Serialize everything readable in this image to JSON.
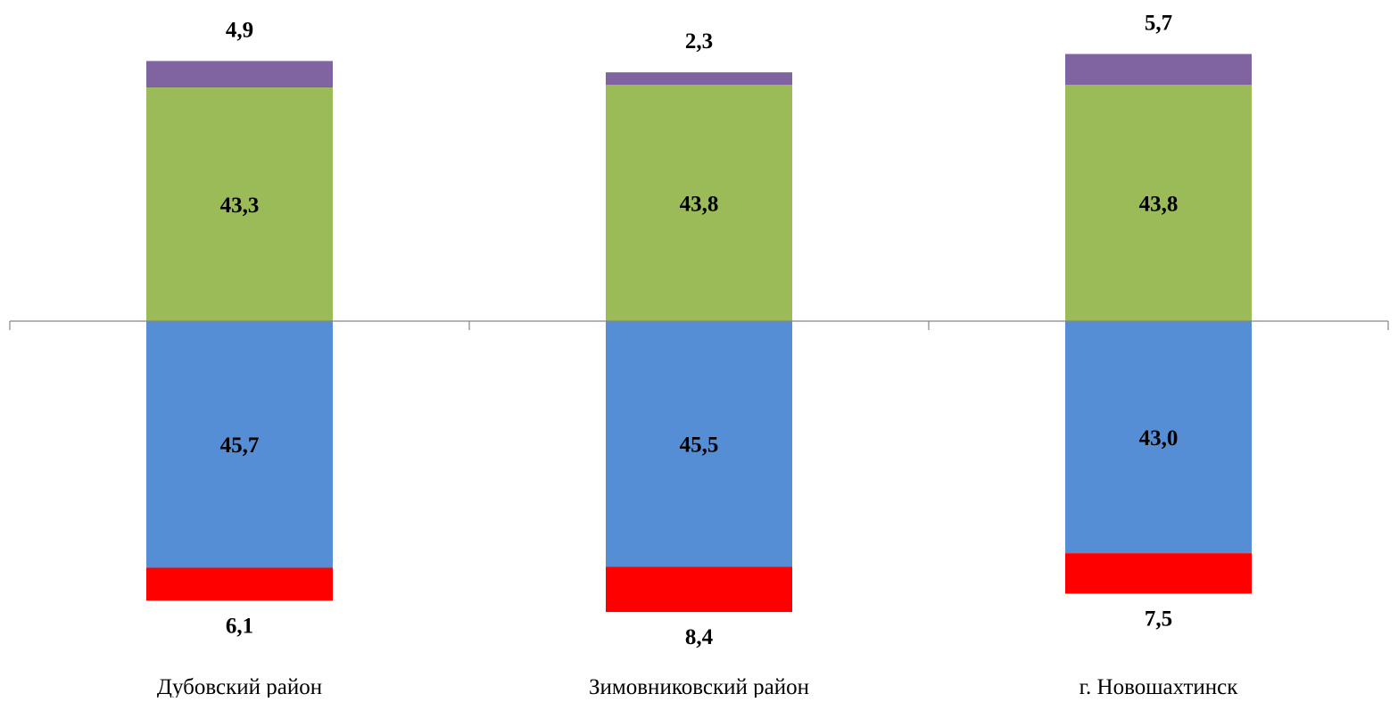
{
  "chart_data": {
    "type": "bar",
    "stacked": "diverging",
    "categories": [
      "Дубовский район",
      "Зимовниковский район",
      "г. Новошахтинск"
    ],
    "series": [
      {
        "side": "positive",
        "color": "#9BBB59",
        "values": [
          43.3,
          43.8,
          43.8
        ],
        "labels": [
          "43,3",
          "43,8",
          "43,8"
        ],
        "label_position": "inside"
      },
      {
        "side": "positive",
        "color": "#8064A2",
        "values": [
          4.9,
          2.3,
          5.7
        ],
        "labels": [
          "4,9",
          "2,3",
          "5,7"
        ],
        "label_position": "outside"
      },
      {
        "side": "negative",
        "color": "#558ED5",
        "values": [
          45.7,
          45.5,
          43.0
        ],
        "labels": [
          "45,7",
          "45,5",
          "43,0"
        ],
        "label_position": "inside"
      },
      {
        "side": "negative",
        "color": "#FF0000",
        "values": [
          6.1,
          8.4,
          7.5
        ],
        "labels": [
          "6,1",
          "8,4",
          "7,5"
        ],
        "label_position": "outside"
      }
    ],
    "title": "",
    "xlabel": "",
    "ylabel": "",
    "grid": false,
    "legend": "none",
    "axis_color": "#868686"
  }
}
